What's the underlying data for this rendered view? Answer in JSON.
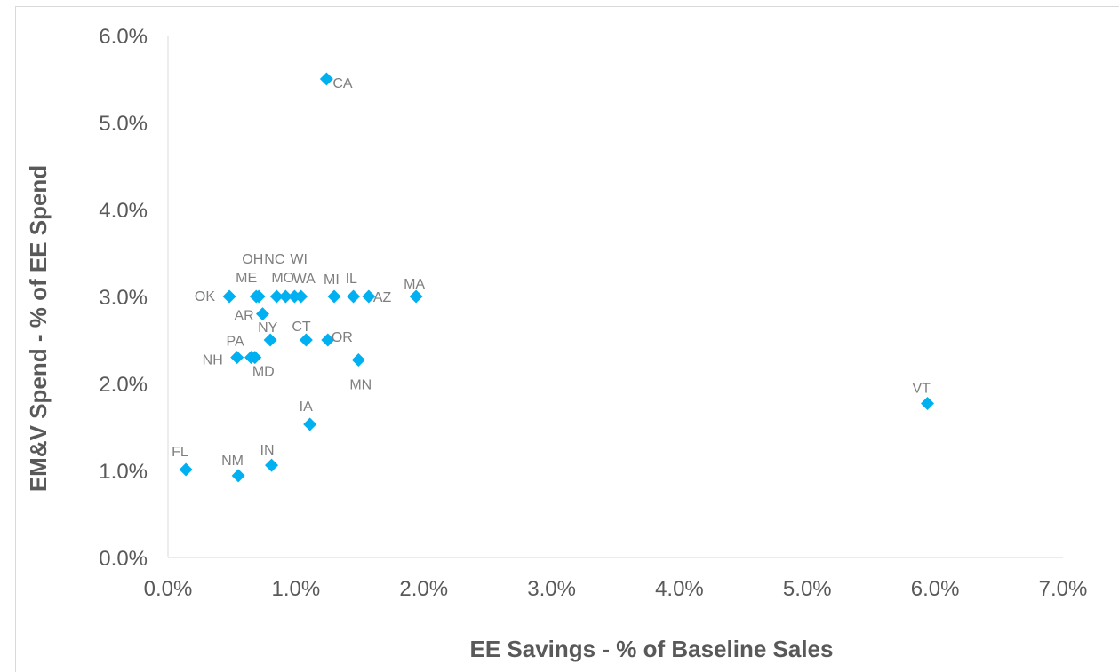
{
  "chart_data": {
    "type": "scatter",
    "xlabel": "EE Savings - % of Baseline Sales",
    "ylabel": "EM&V Spend - % of EE Spend",
    "xlim": [
      0,
      0.07
    ],
    "ylim": [
      0,
      0.06
    ],
    "x_ticks": [
      "0.0%",
      "1.0%",
      "2.0%",
      "3.0%",
      "4.0%",
      "5.0%",
      "6.0%",
      "7.0%"
    ],
    "y_ticks": [
      "0.0%",
      "1.0%",
      "2.0%",
      "3.0%",
      "4.0%",
      "5.0%",
      "6.0%"
    ],
    "grid": false,
    "marker": "diamond",
    "marker_color": "#00B0F0",
    "points": [
      {
        "label": "CA",
        "x": 0.0124,
        "y": 0.055
      },
      {
        "label": "OK",
        "x": 0.0048,
        "y": 0.03
      },
      {
        "label": "OH",
        "x": 0.0069,
        "y": 0.03
      },
      {
        "label": "ME",
        "x": 0.0071,
        "y": 0.03
      },
      {
        "label": "NC",
        "x": 0.0085,
        "y": 0.03
      },
      {
        "label": "MO",
        "x": 0.0092,
        "y": 0.03
      },
      {
        "label": "WI",
        "x": 0.0099,
        "y": 0.03
      },
      {
        "label": "WA",
        "x": 0.0104,
        "y": 0.03
      },
      {
        "label": "MI",
        "x": 0.013,
        "y": 0.03
      },
      {
        "label": "IL",
        "x": 0.0145,
        "y": 0.03
      },
      {
        "label": "AZ",
        "x": 0.0157,
        "y": 0.03
      },
      {
        "label": "MA",
        "x": 0.0194,
        "y": 0.03
      },
      {
        "label": "AR",
        "x": 0.0074,
        "y": 0.028
      },
      {
        "label": "NY",
        "x": 0.008,
        "y": 0.025
      },
      {
        "label": "CT",
        "x": 0.0108,
        "y": 0.025
      },
      {
        "label": "OR",
        "x": 0.0125,
        "y": 0.025
      },
      {
        "label": "NH",
        "x": 0.0054,
        "y": 0.023
      },
      {
        "label": "PA",
        "x": 0.0065,
        "y": 0.023
      },
      {
        "label": "MD",
        "x": 0.0068,
        "y": 0.023
      },
      {
        "label": "MN",
        "x": 0.0149,
        "y": 0.0227
      },
      {
        "label": "VT",
        "x": 0.0594,
        "y": 0.0177
      },
      {
        "label": "IA",
        "x": 0.0111,
        "y": 0.0153
      },
      {
        "label": "FL",
        "x": 0.0014,
        "y": 0.0101
      },
      {
        "label": "NM",
        "x": 0.0055,
        "y": 0.0094
      },
      {
        "label": "IN",
        "x": 0.0081,
        "y": 0.0106
      }
    ]
  }
}
